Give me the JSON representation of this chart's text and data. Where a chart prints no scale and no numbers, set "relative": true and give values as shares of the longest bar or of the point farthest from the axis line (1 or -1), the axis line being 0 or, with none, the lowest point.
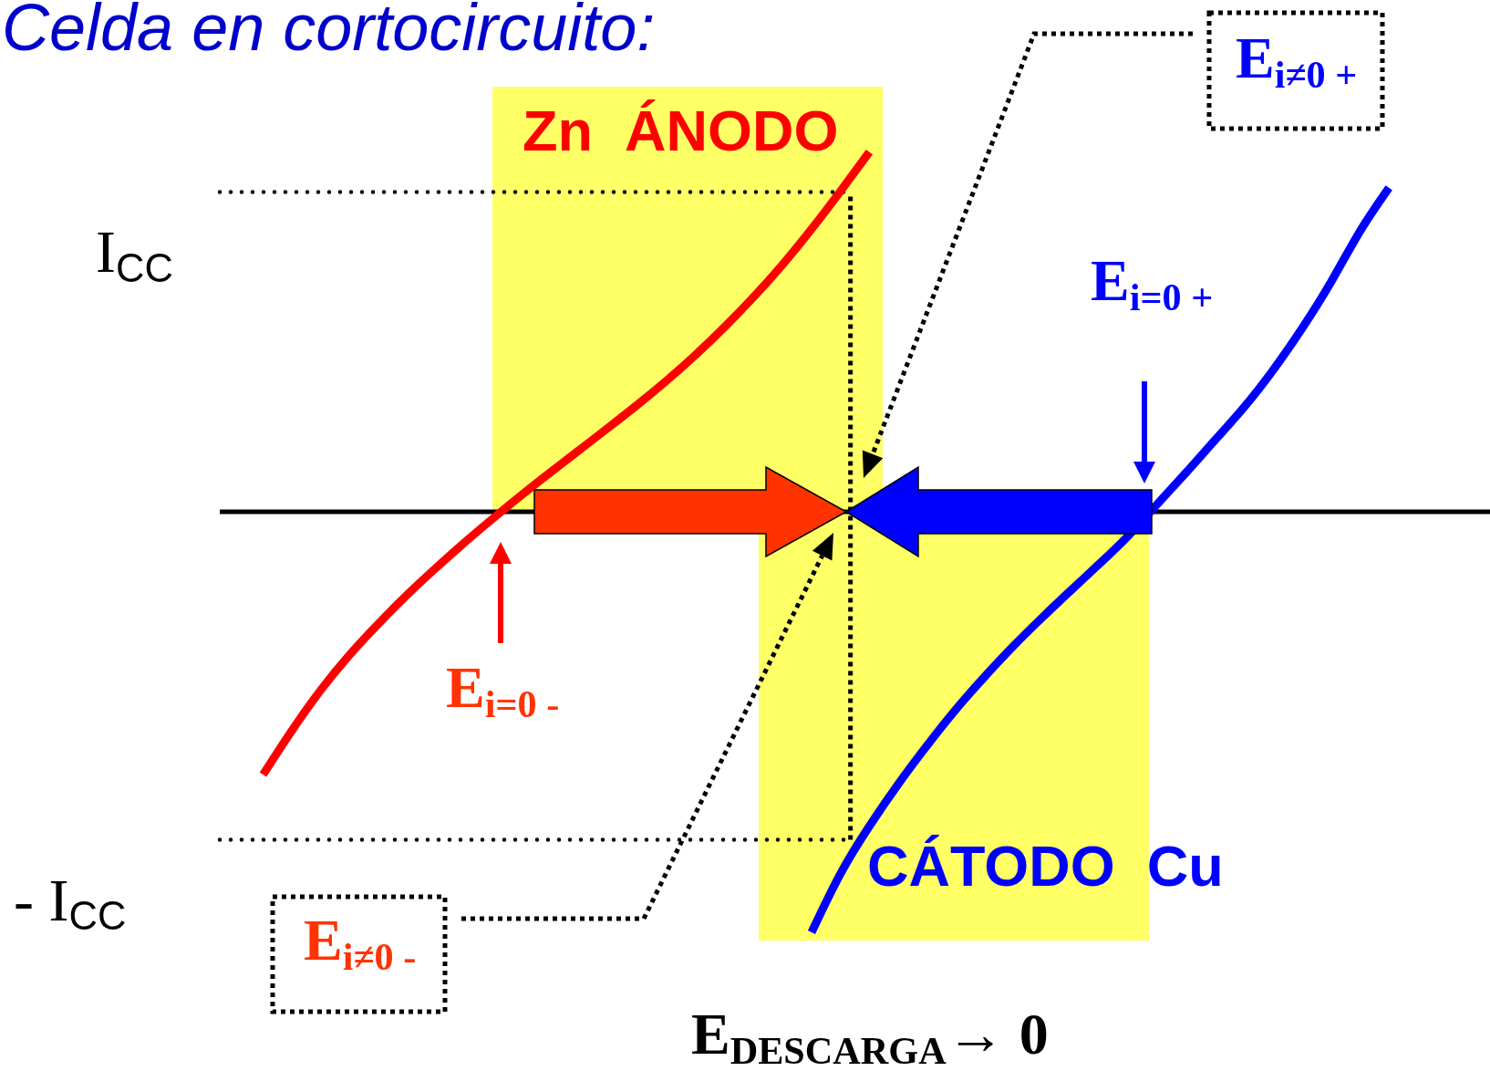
{
  "chart_data": {
    "type": "line",
    "title": "Celda en cortocircuito:",
    "xlabel": "E$_{DESCARGA}$→ 0",
    "relative": true,
    "categories": [
      null,
      null,
      null,
      null,
      null,
      null,
      null,
      null,
      null,
      null,
      null,
      null,
      null,
      null,
      null,
      null,
      null,
      null,
      null,
      null,
      null,
      null,
      null,
      null,
      null,
      null,
      null,
      null,
      null,
      null,
      null,
      null,
      null,
      null,
      null,
      null,
      null,
      null,
      null,
      null,
      null,
      null,
      null,
      null
    ],
    "series": [
      {
        "name": "Zn  ÁNODO",
        "color": "#ff0000",
        "values": [
          null,
          -0.625,
          -0.52,
          -0.424,
          -0.34,
          -0.266,
          -0.197,
          -0.133,
          -0.072,
          -0.014,
          0.042,
          0.096,
          0.149,
          0.202,
          0.256,
          0.313,
          0.374,
          0.44,
          0.511,
          0.588,
          0.672,
          0.762,
          0.855,
          null,
          null,
          null,
          null,
          null,
          null,
          null,
          null,
          null,
          null,
          null,
          null,
          null,
          null,
          null,
          null,
          null,
          null,
          null,
          null,
          null
        ]
      },
      {
        "name": "CÁTODO  Cu",
        "color": "#0000ff",
        "values": [
          null,
          null,
          null,
          null,
          null,
          null,
          null,
          null,
          null,
          null,
          null,
          null,
          null,
          null,
          null,
          null,
          null,
          null,
          null,
          null,
          -1,
          -0.861,
          -0.748,
          -0.648,
          -0.556,
          -0.47,
          -0.392,
          -0.319,
          -0.251,
          -0.186,
          -0.122,
          -0.055,
          0.02,
          0.095,
          0.172,
          0.25,
          0.338,
          0.437,
          0.547,
          0.667,
          0.77,
          null,
          null,
          null
        ]
      }
    ],
    "ref_lines": [
      {
        "axis": "y",
        "value": 0.76,
        "label": "I$_{CC}$",
        "color": "#000000",
        "line_style": "dotted"
      },
      {
        "axis": "y",
        "value": -0.78,
        "label": "- I$_{CC}$",
        "color": "#000000",
        "line_style": "dotted"
      }
    ],
    "annotations": [
      "E$_{i=0 -}$",
      "E$_{i≠0 -}$",
      "E$_{i=0 +}$",
      "E$_{i≠0 +}$"
    ],
    "marker": "none",
    "line_style": "solid"
  }
}
